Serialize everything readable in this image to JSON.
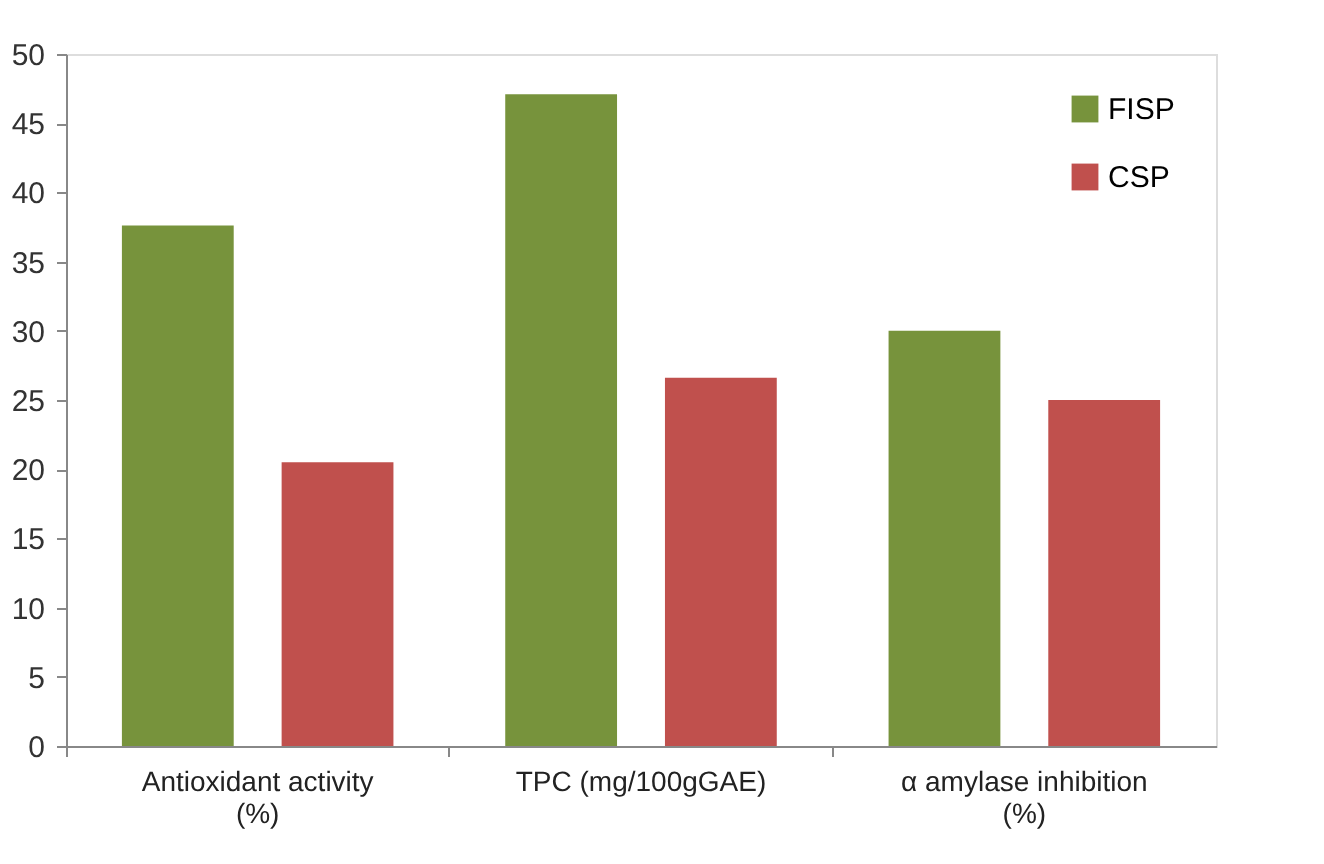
{
  "chart_data": {
    "type": "bar",
    "categories": [
      "Antioxidant activity (%)",
      "TPC (mg/100gGAE)",
      "α amylase inhibition (%)"
    ],
    "series": [
      {
        "name": "FISP",
        "color": "#77933c",
        "values": [
          37.6,
          47.1,
          30.0
        ]
      },
      {
        "name": "CSP",
        "color": "#c0504d",
        "values": [
          20.5,
          26.6,
          25.0
        ]
      }
    ],
    "ylim": [
      0,
      50
    ],
    "yticks": [
      0,
      5,
      10,
      15,
      20,
      25,
      30,
      35,
      40,
      45,
      50
    ],
    "grid": false,
    "legend": "top right"
  }
}
